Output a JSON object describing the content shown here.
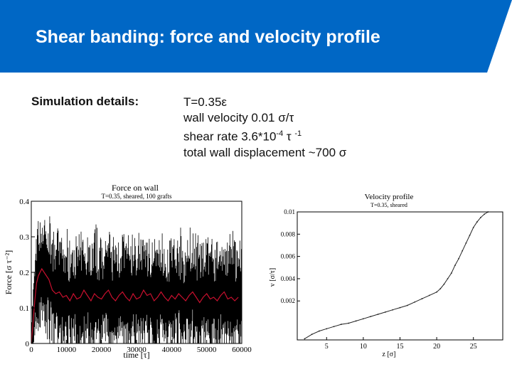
{
  "slide": {
    "title": "Shear banding: force and velocity profile",
    "details_label": "Simulation details:",
    "details": {
      "temperature": "T=0.35ε",
      "wall_velocity": "wall velocity 0.01 σ/τ",
      "shear_rate_prefix": "shear rate 3.6*10",
      "shear_rate_exp1": "-4",
      "shear_rate_mid": " τ ",
      "shear_rate_exp2": "-1",
      "displacement": "total wall displacement ~700 σ"
    },
    "colors": {
      "header": "#0067c5",
      "force_noise": "#000000",
      "force_mean": "#c8102e"
    }
  },
  "chart_data": [
    {
      "type": "line",
      "title": "Force on wall",
      "subtitle": "T=0.35, sheared, 100 grafts",
      "xlabel": "time [τ]",
      "ylabel": "Force [σ τ⁻²]",
      "xlim": [
        0,
        60000
      ],
      "ylim": [
        0,
        0.4
      ],
      "x_ticks": [
        "0",
        "10000",
        "20000",
        "30000",
        "40000",
        "50000",
        "60000"
      ],
      "y_ticks": [
        "0",
        "0.1",
        "0.2",
        "0.3",
        "0.4"
      ],
      "series": [
        {
          "name": "mean force",
          "x": [
            0,
            500,
            1000,
            1500,
            2000,
            2500,
            3000,
            4000,
            5000,
            6000,
            7000,
            8000,
            9000,
            10000,
            11000,
            12000,
            13000,
            14000,
            15000,
            16000,
            17000,
            18000,
            19000,
            20000,
            21000,
            22000,
            23000,
            24000,
            25000,
            26000,
            27000,
            28000,
            29000,
            30000,
            31000,
            32000,
            33000,
            34000,
            35000,
            36000,
            37000,
            38000,
            39000,
            40000,
            41000,
            42000,
            43000,
            44000,
            45000,
            46000,
            47000,
            48000,
            49000,
            50000,
            51000,
            52000,
            53000,
            54000,
            55000,
            56000,
            57000,
            58000,
            59000
          ],
          "values": [
            0.0,
            0.06,
            0.12,
            0.17,
            0.19,
            0.2,
            0.21,
            0.195,
            0.18,
            0.15,
            0.14,
            0.145,
            0.13,
            0.135,
            0.12,
            0.14,
            0.125,
            0.13,
            0.15,
            0.135,
            0.12,
            0.14,
            0.13,
            0.125,
            0.14,
            0.15,
            0.13,
            0.12,
            0.135,
            0.145,
            0.13,
            0.12,
            0.14,
            0.125,
            0.13,
            0.15,
            0.135,
            0.14,
            0.12,
            0.13,
            0.145,
            0.13,
            0.12,
            0.135,
            0.125,
            0.14,
            0.13,
            0.12,
            0.135,
            0.145,
            0.13,
            0.115,
            0.13,
            0.14,
            0.125,
            0.13,
            0.12,
            0.135,
            0.145,
            0.125,
            0.13,
            0.12,
            0.13
          ]
        }
      ],
      "noise_band": {
        "name": "instantaneous force",
        "approx_range": [
          0.02,
          0.3
        ]
      }
    },
    {
      "type": "line",
      "title": "Velocity profile",
      "subtitle": "T=0.35, sheared",
      "xlabel": "z [σ]",
      "ylabel": "v [σ/τ]",
      "xlim": [
        1,
        29
      ],
      "ylim": [
        -0.0015,
        0.01
      ],
      "x_ticks": [
        "5",
        "10",
        "15",
        "20",
        "25"
      ],
      "y_ticks": [
        "0.002",
        "0.004",
        "0.006",
        "0.008",
        "0.01"
      ],
      "series": [
        {
          "name": "velocity",
          "x": [
            2,
            3,
            4,
            5,
            6,
            7,
            8,
            9,
            10,
            11,
            12,
            13,
            14,
            15,
            16,
            17,
            18,
            19,
            20,
            20.5,
            21,
            21.5,
            22,
            22.5,
            23,
            23.5,
            24,
            24.5,
            25,
            25.5,
            26,
            26.5,
            27
          ],
          "values": [
            -0.0014,
            -0.001,
            -0.0007,
            -0.0005,
            -0.0003,
            -0.0001,
            0.0,
            0.0002,
            0.0004,
            0.0006,
            0.0008,
            0.001,
            0.0012,
            0.0014,
            0.0016,
            0.0019,
            0.0022,
            0.0025,
            0.0028,
            0.0031,
            0.0035,
            0.004,
            0.0045,
            0.0052,
            0.0058,
            0.0065,
            0.0072,
            0.0079,
            0.0086,
            0.0091,
            0.0095,
            0.0098,
            0.01
          ]
        }
      ]
    }
  ]
}
